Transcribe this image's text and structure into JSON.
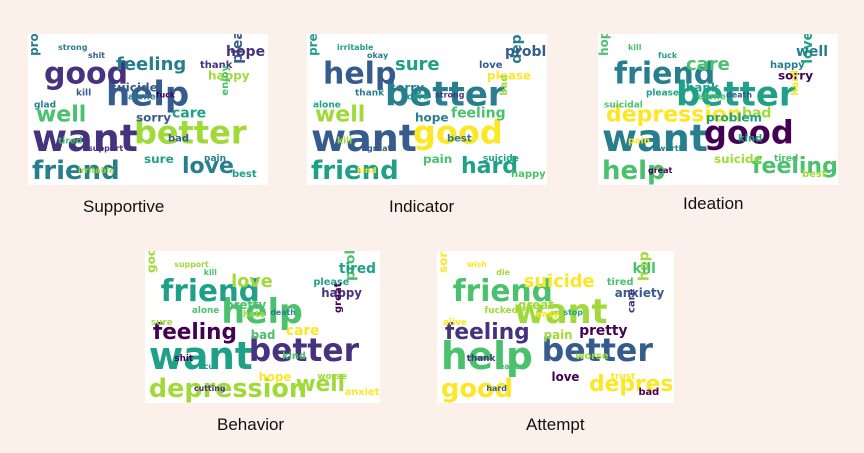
{
  "palette": {
    "background": "#fcf1ea",
    "viridis": [
      "#440154",
      "#46327e",
      "#365c8d",
      "#277f8e",
      "#1fa187",
      "#4ac16d",
      "#a0da39",
      "#fde725"
    ]
  },
  "panels": [
    {
      "label": "Supportive",
      "words": [
        "want",
        "help",
        "good",
        "better",
        "friend",
        "well",
        "love",
        "feeling",
        "please",
        "hope",
        "care",
        "problem",
        "suicide",
        "sorry",
        "sure",
        "happy",
        "thank",
        "bad",
        "best",
        "enjoy",
        "alone",
        "tired",
        "glad",
        "kill",
        "pain",
        "support",
        "fuck",
        "shit",
        "strong",
        "irritable"
      ]
    },
    {
      "label": "Indicator",
      "words": [
        "want",
        "better",
        "help",
        "good",
        "friend",
        "well",
        "hard",
        "sure",
        "depression",
        "problem",
        "feeling",
        "pretty",
        "sorry",
        "hope",
        "pain",
        "please",
        "love",
        "best",
        "happy",
        "bad",
        "care",
        "kill",
        "alone",
        "thank",
        "suicide",
        "great",
        "strong",
        "okay",
        "irritable",
        "kind"
      ]
    },
    {
      "label": "Ideation",
      "words": [
        "want",
        "better",
        "friend",
        "good",
        "help",
        "depression",
        "feeling",
        "care",
        "love",
        "well",
        "bad",
        "hope",
        "thank",
        "problem",
        "suicide",
        "sorry",
        "happy",
        "kind",
        "best",
        "hard",
        "alone",
        "pain",
        "suicidal",
        "please",
        "tired",
        "worth",
        "death",
        "fuck",
        "kill",
        "great"
      ]
    },
    {
      "label": "Behavior",
      "words": [
        "want",
        "help",
        "friend",
        "better",
        "depression",
        "feeling",
        "well",
        "love",
        "problem",
        "tired",
        "care",
        "good",
        "pretty",
        "bad",
        "hope",
        "happy",
        "please",
        "kind",
        "anxiety",
        "great",
        "hate",
        "shit",
        "sure",
        "alone",
        "worse",
        "cut",
        "death",
        "kill",
        "support",
        "cutting"
      ]
    },
    {
      "label": "Attempt",
      "words": [
        "help",
        "want",
        "friend",
        "better",
        "good",
        "feeling",
        "depression",
        "suicide",
        "hope",
        "kill",
        "pretty",
        "sorry",
        "great",
        "pain",
        "love",
        "anxiety",
        "tired",
        "worse",
        "bad",
        "care",
        "easy",
        "thank",
        "alive",
        "fucked",
        "trust",
        "leave",
        "stop",
        "die",
        "wish",
        "hard"
      ]
    }
  ]
}
